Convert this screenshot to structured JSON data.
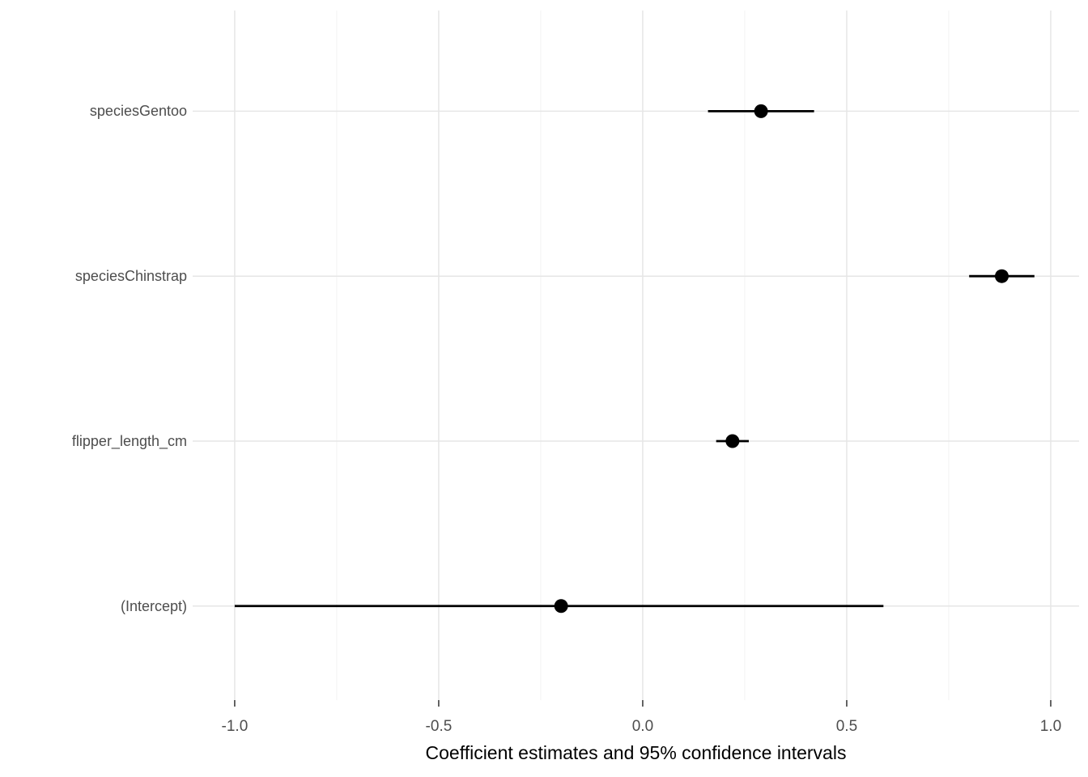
{
  "chart_data": {
    "type": "scatter",
    "subtype": "coefficient-forest-plot",
    "title": "",
    "xlabel": "Coefficient estimates and 95% confidence intervals",
    "ylabel": "",
    "xlim": [
      -1.103,
      1.0695
    ],
    "x_ticks": [
      -1.0,
      -0.5,
      0.0,
      0.5,
      1.0
    ],
    "x_tick_labels": [
      "-1.0",
      "-0.5",
      "0.0",
      "0.5",
      "1.0"
    ],
    "x_minor_ticks": [
      -0.75,
      -0.25,
      0.25,
      0.75
    ],
    "grid": true,
    "legend": false,
    "terms": [
      {
        "label": "speciesGentoo",
        "estimate": 0.29,
        "ci_low": 0.16,
        "ci_high": 0.42
      },
      {
        "label": "speciesChinstrap",
        "estimate": 0.88,
        "ci_low": 0.8,
        "ci_high": 0.96
      },
      {
        "label": "flipper_length_cm",
        "estimate": 0.22,
        "ci_low": 0.18,
        "ci_high": 0.26
      },
      {
        "label": "(Intercept)",
        "estimate": -0.2,
        "ci_low": -1.0,
        "ci_high": 0.59
      }
    ],
    "colors": {
      "point": "#000000",
      "error_bar": "#000000",
      "grid_major": "#e6e6e6",
      "grid_minor": "#f2f2f2",
      "axis_tick": "#333333",
      "tick_label": "#4d4d4d",
      "axis_title": "#000000",
      "background": "#ffffff"
    }
  }
}
